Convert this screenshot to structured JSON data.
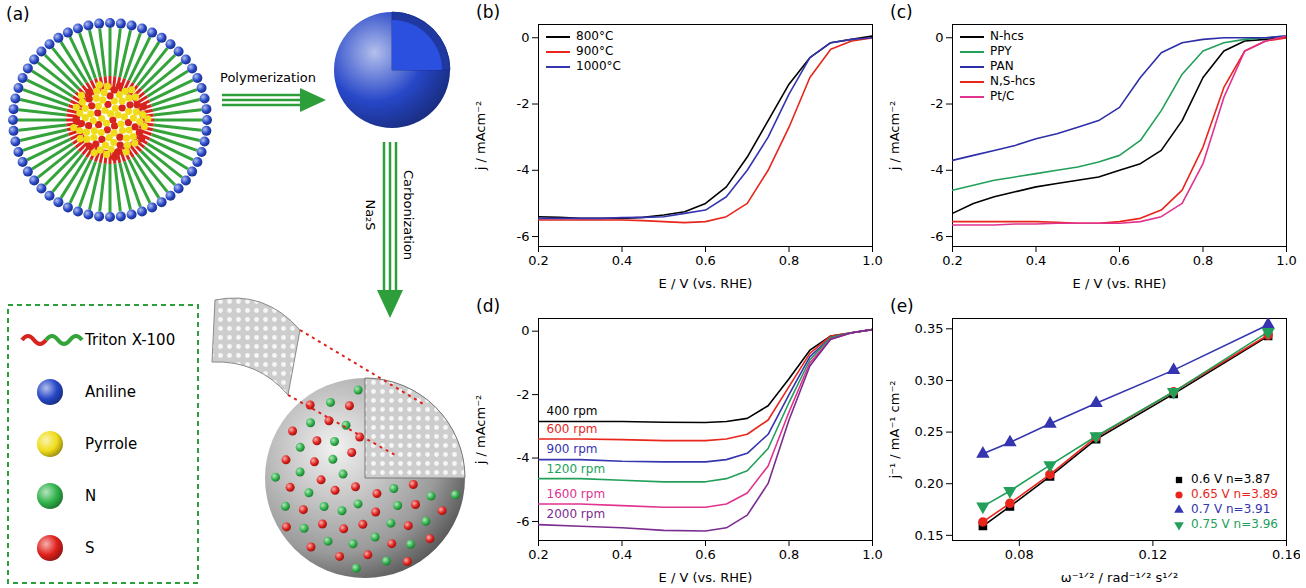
{
  "diagram": {
    "panel": "(a)",
    "steps": [
      {
        "label": "Polymerization"
      },
      {
        "label": "Na₂S"
      },
      {
        "label": "Carbonization"
      }
    ],
    "key_items": [
      {
        "label": "Triton X-100",
        "colors": [
          "#d8241f",
          "#33a33a"
        ]
      },
      {
        "label": "Aniline",
        "color": "#2747c8"
      },
      {
        "label": "Pyrrole",
        "color": "#f0dc1a"
      },
      {
        "label": "N",
        "color": "#2fb34a"
      },
      {
        "label": "S",
        "color": "#e0201b"
      }
    ]
  },
  "chart_data": [
    {
      "panel": "(b)",
      "type": "line",
      "x_label": "E / V (vs. RHE)",
      "y_label": "j / mAcm⁻²",
      "xlim": [
        0.2,
        1.0
      ],
      "xticks": [
        0.2,
        0.4,
        0.6,
        0.8,
        {
          "value": 1.0,
          "label": "1.0"
        }
      ],
      "ylim": [
        -6.3,
        0.4
      ],
      "yticks": [
        -6,
        -4,
        -2,
        0
      ],
      "legend": "top-left",
      "x": [
        0.2,
        0.25,
        0.3,
        0.35,
        0.4,
        0.45,
        0.5,
        0.55,
        0.6,
        0.65,
        0.7,
        0.75,
        0.8,
        0.85,
        0.9,
        0.95,
        1.0
      ],
      "series": [
        {
          "name": "800°C",
          "color": "#000000",
          "values": [
            -5.4,
            -5.42,
            -5.45,
            -5.45,
            -5.45,
            -5.42,
            -5.35,
            -5.25,
            -5.0,
            -4.5,
            -3.6,
            -2.5,
            -1.4,
            -0.6,
            -0.15,
            -0.05,
            0.05
          ]
        },
        {
          "name": "900°C",
          "color": "#e8261b",
          "values": [
            -5.5,
            -5.5,
            -5.5,
            -5.5,
            -5.5,
            -5.52,
            -5.55,
            -5.58,
            -5.55,
            -5.4,
            -5.0,
            -4.0,
            -2.7,
            -1.2,
            -0.35,
            -0.1,
            0
          ]
        },
        {
          "name": "1000°C",
          "color": "#3535b0",
          "values": [
            -5.45,
            -5.45,
            -5.45,
            -5.45,
            -5.43,
            -5.42,
            -5.4,
            -5.3,
            -5.2,
            -4.8,
            -4.0,
            -3.0,
            -1.7,
            -0.6,
            -0.15,
            -0.05,
            0
          ]
        }
      ]
    },
    {
      "panel": "(c)",
      "type": "line",
      "x_label": "E / V (vs. RHE)",
      "y_label": "j / mAcm⁻²",
      "xlim": [
        0.2,
        1.0
      ],
      "xticks": [
        0.2,
        0.4,
        0.6,
        0.8,
        {
          "value": 1.0,
          "label": "1.0"
        }
      ],
      "ylim": [
        -6.3,
        0.4
      ],
      "yticks": [
        -6,
        -4,
        -2,
        0
      ],
      "legend": "top-left",
      "x": [
        0.2,
        0.25,
        0.3,
        0.35,
        0.4,
        0.45,
        0.5,
        0.55,
        0.6,
        0.65,
        0.7,
        0.75,
        0.8,
        0.85,
        0.9,
        0.95,
        1.0
      ],
      "series": [
        {
          "name": "N-hcs",
          "color": "#000000",
          "values": [
            -5.3,
            -5.0,
            -4.8,
            -4.65,
            -4.5,
            -4.4,
            -4.3,
            -4.2,
            -4.0,
            -3.8,
            -3.4,
            -2.5,
            -1.2,
            -0.4,
            -0.1,
            -0.05,
            0
          ]
        },
        {
          "name": "PPY",
          "color": "#22a05a",
          "values": [
            -4.6,
            -4.45,
            -4.3,
            -4.2,
            -4.1,
            -4.0,
            -3.9,
            -3.75,
            -3.55,
            -3.1,
            -2.2,
            -1.1,
            -0.4,
            -0.15,
            -0.05,
            0,
            0.05
          ]
        },
        {
          "name": "PAN",
          "color": "#2e2ea8",
          "values": [
            -3.7,
            -3.55,
            -3.4,
            -3.25,
            -3.05,
            -2.9,
            -2.7,
            -2.5,
            -2.1,
            -1.2,
            -0.45,
            -0.15,
            -0.05,
            0,
            0,
            0,
            0.05
          ]
        },
        {
          "name": "N,S-hcs",
          "color": "#e8261b",
          "values": [
            -5.55,
            -5.55,
            -5.55,
            -5.55,
            -5.55,
            -5.57,
            -5.6,
            -5.6,
            -5.55,
            -5.45,
            -5.2,
            -4.6,
            -3.3,
            -1.5,
            -0.4,
            -0.1,
            0
          ]
        },
        {
          "name": "Pt/C",
          "color": "#e0338f",
          "values": [
            -5.65,
            -5.65,
            -5.65,
            -5.62,
            -5.62,
            -5.6,
            -5.6,
            -5.6,
            -5.6,
            -5.55,
            -5.4,
            -5.0,
            -3.8,
            -1.8,
            -0.4,
            -0.1,
            0.05
          ]
        }
      ]
    },
    {
      "panel": "(d)",
      "type": "line",
      "x_label": "E / V (vs. RHE)",
      "y_label": "j / mAcm⁻²",
      "xlim": [
        0.2,
        1.0
      ],
      "xticks": [
        0.2,
        0.4,
        0.6,
        0.8,
        {
          "value": 1.0,
          "label": "1.0"
        }
      ],
      "ylim": [
        -6.6,
        0.4
      ],
      "yticks": [
        -6,
        -4,
        -2,
        0
      ],
      "legend": "inline",
      "x": [
        0.2,
        0.3,
        0.4,
        0.5,
        0.6,
        0.65,
        0.7,
        0.75,
        0.8,
        0.85,
        0.9,
        0.95,
        1.0
      ],
      "series": [
        {
          "name": "400 rpm",
          "color": "#000000",
          "values": [
            -2.85,
            -2.85,
            -2.85,
            -2.87,
            -2.88,
            -2.85,
            -2.75,
            -2.35,
            -1.5,
            -0.6,
            -0.15,
            -0.05,
            0.05
          ]
        },
        {
          "name": "600 rpm",
          "color": "#e8261b",
          "values": [
            -3.4,
            -3.4,
            -3.42,
            -3.45,
            -3.45,
            -3.4,
            -3.25,
            -2.8,
            -1.75,
            -0.7,
            -0.15,
            -0.05,
            0.05
          ]
        },
        {
          "name": "900 rpm",
          "color": "#3535b0",
          "values": [
            -4.05,
            -4.05,
            -4.1,
            -4.12,
            -4.12,
            -4.05,
            -3.85,
            -3.25,
            -2.0,
            -0.8,
            -0.2,
            -0.05,
            0.05
          ]
        },
        {
          "name": "1200 rpm",
          "color": "#22a05a",
          "values": [
            -4.65,
            -4.65,
            -4.7,
            -4.75,
            -4.75,
            -4.65,
            -4.4,
            -3.7,
            -2.25,
            -0.9,
            -0.2,
            -0.05,
            0.05
          ]
        },
        {
          "name": "1600 rpm",
          "color": "#e0338f",
          "values": [
            -5.45,
            -5.45,
            -5.5,
            -5.55,
            -5.55,
            -5.45,
            -5.1,
            -4.25,
            -2.55,
            -1.0,
            -0.25,
            -0.05,
            0.05
          ]
        },
        {
          "name": "2000 rpm",
          "color": "#7b2c8f",
          "values": [
            -6.1,
            -6.15,
            -6.2,
            -6.28,
            -6.3,
            -6.2,
            -5.8,
            -4.8,
            -2.8,
            -1.1,
            -0.25,
            -0.05,
            0.05
          ]
        }
      ]
    },
    {
      "panel": "(e)",
      "type": "scatter",
      "x_label": "ω⁻¹ᐟ² / rad⁻¹ᐟ² s¹ᐟ²",
      "y_label": "j⁻¹ / mA⁻¹ cm⁻²",
      "xlim": [
        0.06,
        0.16
      ],
      "xticks": [
        0.08,
        0.12,
        0.16
      ],
      "ylim": [
        0.145,
        0.36
      ],
      "yticks": [
        0.15,
        {
          "value": 0.2,
          "label": "0.20"
        },
        0.25,
        {
          "value": 0.3,
          "label": "0.30"
        },
        0.35
      ],
      "legend": "bottom-right",
      "x": [
        0.0691,
        0.0772,
        0.0892,
        0.103,
        0.1262,
        0.1545
      ],
      "series": [
        {
          "name": "0.6 V",
          "annotation": "n=3.87",
          "color": "#000000",
          "marker": "square",
          "line_style": "solid",
          "values": [
            0.159,
            0.178,
            0.207,
            0.243,
            0.287,
            0.343
          ]
        },
        {
          "name": "0.65 V",
          "annotation": "n=3.89",
          "color": "#e8261b",
          "marker": "circle",
          "line_style": "solid",
          "values": [
            0.163,
            0.181,
            0.209,
            0.245,
            0.289,
            0.344
          ]
        },
        {
          "name": "0.7 V",
          "annotation": "n=3.91",
          "color": "#3535b0",
          "marker": "triangle-up",
          "line_style": "solid",
          "values": [
            0.229,
            0.24,
            0.258,
            0.278,
            0.31,
            0.354
          ]
        },
        {
          "name": "0.75 V",
          "annotation": "n=3.96",
          "color": "#22a05a",
          "marker": "triangle-down",
          "line_style": "solid",
          "values": [
            0.178,
            0.193,
            0.218,
            0.246,
            0.289,
            0.347
          ]
        }
      ]
    }
  ]
}
